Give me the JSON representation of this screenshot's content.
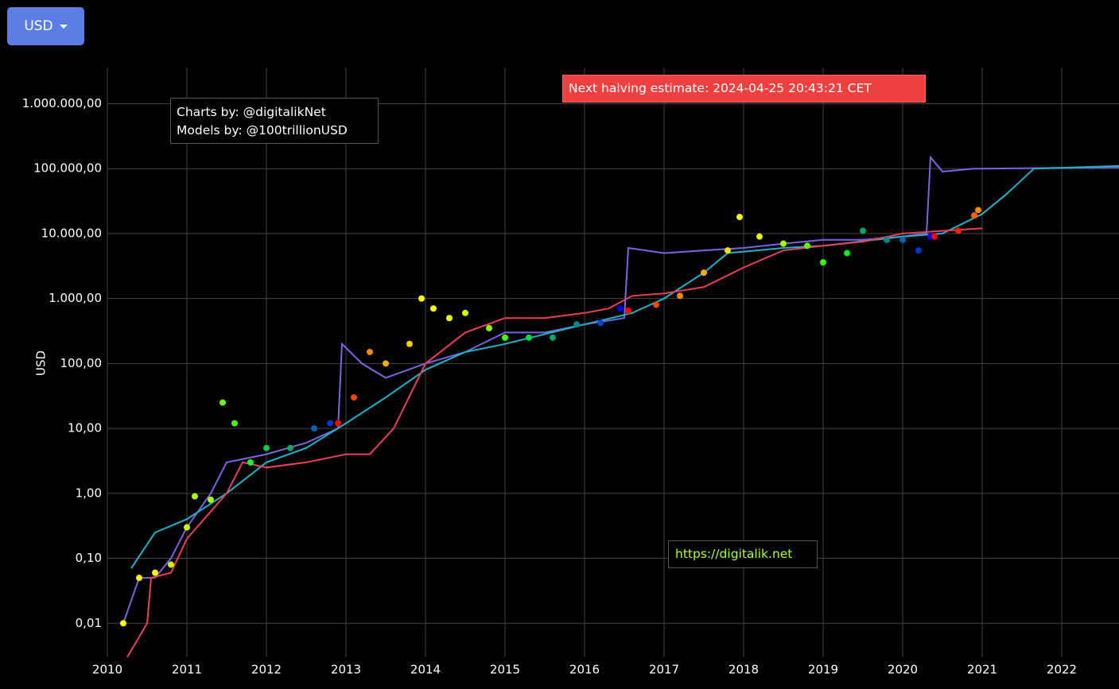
{
  "controls": {
    "currency": "USD"
  },
  "chart_data": {
    "type": "line",
    "log_y": true,
    "grid": true,
    "ylabel": "USD",
    "annotations": [
      "Charts by: @digitalikNet",
      "Models by: @100trillionUSD",
      "Next halving estimate: 2024-04-25 20:43:21 CET",
      "https://digitalik.net"
    ],
    "xlim": [
      2010,
      2022.72
    ],
    "xticks": [
      2010,
      2011,
      2012,
      2013,
      2014,
      2015,
      2016,
      2017,
      2018,
      2019,
      2020,
      2021,
      2022
    ],
    "ylim": [
      0.003,
      3600000
    ],
    "yticks": [
      {
        "value": 0.01,
        "label": "0,01"
      },
      {
        "value": 0.1,
        "label": "0,10"
      },
      {
        "value": 1,
        "label": "1,00"
      },
      {
        "value": 10,
        "label": "10,00"
      },
      {
        "value": 100,
        "label": "100,00"
      },
      {
        "value": 1000,
        "label": "1.000,00"
      },
      {
        "value": 10000,
        "label": "10.000,00"
      },
      {
        "value": 100000,
        "label": "100.000,00"
      },
      {
        "value": 1000000,
        "label": "1.000.000,00"
      }
    ],
    "series": [
      {
        "mode": "lines",
        "color": "#7766dd",
        "x": [
          2010.2,
          2010.4,
          2010.6,
          2010.8,
          2011.0,
          2011.3,
          2011.5,
          2012.0,
          2012.5,
          2012.9,
          2012.95,
          2013.2,
          2013.5,
          2014.0,
          2014.5,
          2015.0,
          2015.5,
          2016.0,
          2016.5,
          2016.55,
          2017.0,
          2017.5,
          2018.0,
          2018.5,
          2019.0,
          2019.5,
          2020.0,
          2020.3,
          2020.35,
          2020.5,
          2020.9,
          2021.0,
          2022.72
        ],
        "values": [
          0.01,
          0.05,
          0.05,
          0.1,
          0.3,
          1,
          3,
          4,
          6,
          10,
          200,
          100,
          60,
          100,
          150,
          300,
          300,
          400,
          500,
          6000,
          5000,
          5500,
          6000,
          7000,
          8000,
          8000,
          9000,
          10000,
          150000,
          90000,
          100000,
          100000,
          105000
        ]
      },
      {
        "mode": "lines",
        "color": "#20b2c8",
        "x": [
          2010.3,
          2010.6,
          2011.0,
          2011.5,
          2012.0,
          2012.5,
          2013.0,
          2013.5,
          2014.0,
          2014.5,
          2015.0,
          2016.0,
          2016.6,
          2017.0,
          2017.5,
          2017.8,
          2018.5,
          2019.0,
          2020.0,
          2020.5,
          2021.0,
          2021.3,
          2021.65,
          2022.72
        ],
        "values": [
          0.07,
          0.25,
          0.4,
          1,
          3,
          5,
          12,
          30,
          80,
          150,
          200,
          400,
          600,
          1000,
          2500,
          5000,
          6000,
          6500,
          9000,
          10000,
          20000,
          40000,
          100000,
          110000
        ]
      },
      {
        "mode": "lines",
        "color": "#e8405a",
        "x": [
          2010.25,
          2010.5,
          2010.55,
          2010.8,
          2011.0,
          2011.5,
          2011.7,
          2012.0,
          2012.5,
          2013.0,
          2013.3,
          2013.6,
          2014.0,
          2014.5,
          2015.0,
          2015.5,
          2016.0,
          2016.3,
          2016.6,
          2017.0,
          2017.5,
          2018.0,
          2018.5,
          2019.0,
          2019.5,
          2020.0,
          2020.5,
          2021.0
        ],
        "values": [
          0.003,
          0.01,
          0.05,
          0.06,
          0.2,
          1,
          3,
          2.5,
          3,
          4,
          4,
          10,
          100,
          300,
          500,
          500,
          600,
          700,
          1100,
          1200,
          1500,
          3000,
          5500,
          6500,
          7500,
          10000,
          11000,
          12000
        ]
      },
      {
        "mode": "markers",
        "x": [
          2010.2,
          2010.4,
          2010.6,
          2010.8,
          2011.0,
          2011.1,
          2011.3,
          2011.45,
          2011.6,
          2011.8,
          2012.0,
          2012.3,
          2012.6,
          2012.8,
          2012.9,
          2013.1,
          2013.3,
          2013.5,
          2013.8,
          2013.95,
          2014.1,
          2014.3,
          2014.5,
          2014.8,
          2015.0,
          2015.3,
          2015.6,
          2015.9,
          2016.2,
          2016.45,
          2016.55,
          2016.9,
          2017.2,
          2017.5,
          2017.8,
          2017.95,
          2018.2,
          2018.5,
          2018.8,
          2019.0,
          2019.3,
          2019.5,
          2019.8,
          2020.0,
          2020.2,
          2020.35,
          2020.4,
          2020.7,
          2020.9,
          2020.95
        ],
        "values": [
          0.01,
          0.05,
          0.06,
          0.08,
          0.3,
          0.9,
          0.8,
          25,
          12,
          3,
          5,
          5,
          10,
          12,
          12,
          30,
          150,
          100,
          200,
          1000,
          700,
          500,
          600,
          350,
          250,
          250,
          250,
          400,
          420,
          700,
          650,
          800,
          1100,
          2500,
          5500,
          18000,
          9000,
          7000,
          6500,
          3600,
          5000,
          11000,
          8000,
          8000,
          5500,
          9000,
          9000,
          11000,
          19000,
          23000
        ],
        "colors": [
          "#ffff00",
          "#ffff00",
          "#ffff00",
          "#ccff00",
          "#ccff00",
          "#aaff00",
          "#aaff00",
          "#66ff00",
          "#44ff00",
          "#22ff22",
          "#00cc44",
          "#00aa66",
          "#0066aa",
          "#0033cc",
          "#ff0000",
          "#ff4400",
          "#ff8800",
          "#ffaa00",
          "#ffcc00",
          "#ffff00",
          "#ffff00",
          "#eeff00",
          "#ccff00",
          "#88ff00",
          "#44ff00",
          "#00dd44",
          "#00aa66",
          "#008888",
          "#0044cc",
          "#0000ff",
          "#ff0000",
          "#ff4400",
          "#ff8800",
          "#ffaa00",
          "#ffdd00",
          "#ffff00",
          "#ddff00",
          "#aaff00",
          "#66ff00",
          "#33ff00",
          "#00ee22",
          "#00aa66",
          "#008888",
          "#0066aa",
          "#0033cc",
          "#0000ff",
          "#ff0000",
          "#ff2200",
          "#ff6600",
          "#ff8800"
        ]
      }
    ]
  }
}
